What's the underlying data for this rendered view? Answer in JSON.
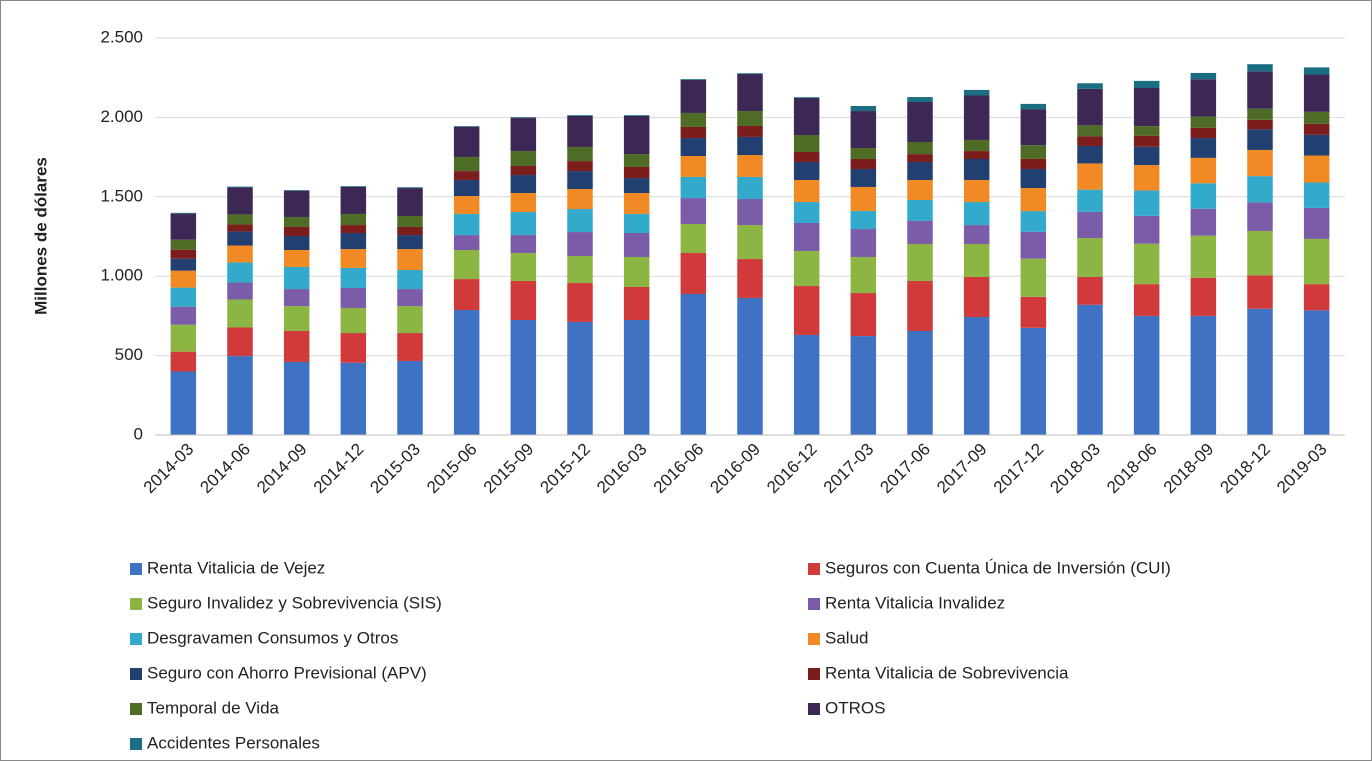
{
  "chart_data": {
    "type": "stacked_bar",
    "y_label": "Millones de dólares",
    "categories": [
      "2014-03",
      "2014-06",
      "2014-09",
      "2014-12",
      "2015-03",
      "2015-06",
      "2015-09",
      "2015-12",
      "2016-03",
      "2016-06",
      "2016-09",
      "2016-12",
      "2017-03",
      "2017-06",
      "2017-09",
      "2017-12",
      "2018-03",
      "2018-06",
      "2018-09",
      "2018-12",
      "2019-03"
    ],
    "series": [
      {
        "name": "Renta Vitalicia de Vejez",
        "color": "#3f72c2",
        "values": [
          400,
          497,
          460,
          455,
          466,
          787,
          724,
          712,
          724,
          888,
          863,
          630,
          623,
          655,
          743,
          675,
          820,
          750,
          750,
          795,
          785
        ]
      },
      {
        "name": "Seguros con Cuenta Única de Inversión (CUI)",
        "color": "#d03a3a",
        "values": [
          125,
          180,
          195,
          187,
          176,
          195,
          246,
          245,
          208,
          258,
          245,
          308,
          271,
          315,
          252,
          195,
          175,
          200,
          240,
          210,
          165
        ]
      },
      {
        "name": "Seguro Invalidez y Sobrevivencia (SIS)",
        "color": "#8db543",
        "values": [
          170,
          176,
          157,
          158,
          170,
          183,
          176,
          170,
          189,
          183,
          214,
          221,
          227,
          233,
          208,
          240,
          245,
          255,
          265,
          280,
          285
        ]
      },
      {
        "name": "Renta Vitalicia Invalidez",
        "color": "#7b5ca8",
        "values": [
          113,
          107,
          107,
          126,
          107,
          94,
          113,
          151,
          151,
          163,
          164,
          176,
          176,
          145,
          119,
          170,
          165,
          175,
          170,
          180,
          195
        ]
      },
      {
        "name": "Desgravamen Consumos y Otros",
        "color": "#33a9cc",
        "values": [
          120,
          126,
          139,
          126,
          120,
          133,
          145,
          145,
          120,
          133,
          139,
          132,
          114,
          132,
          145,
          130,
          140,
          160,
          160,
          165,
          160
        ]
      },
      {
        "name": "Salud",
        "color": "#f18a25",
        "values": [
          107,
          107,
          107,
          119,
          132,
          113,
          120,
          126,
          132,
          132,
          138,
          139,
          151,
          126,
          139,
          145,
          165,
          160,
          160,
          165,
          170
        ]
      },
      {
        "name": "Seguro con Ahorro Previsional (APV)",
        "color": "#213f70",
        "values": [
          75,
          89,
          88,
          101,
          88,
          101,
          113,
          113,
          94,
          113,
          114,
          113,
          113,
          113,
          132,
          120,
          110,
          115,
          125,
          130,
          130
        ]
      },
      {
        "name": "Renta Vitalicia de Sobrevivencia",
        "color": "#7c1d1d",
        "values": [
          57,
          44,
          57,
          50,
          51,
          56,
          57,
          63,
          70,
          70,
          69,
          63,
          63,
          50,
          50,
          65,
          60,
          70,
          65,
          60,
          70
        ]
      },
      {
        "name": "Temporal de Vida",
        "color": "#4f6c26",
        "values": [
          63,
          63,
          63,
          70,
          69,
          89,
          94,
          89,
          81,
          88,
          94,
          107,
          69,
          76,
          70,
          85,
          70,
          60,
          70,
          70,
          75
        ]
      },
      {
        "name": "OTROS",
        "color": "#3c2755",
        "values": [
          164,
          170,
          164,
          170,
          176,
          189,
          208,
          195,
          240,
          208,
          233,
          233,
          233,
          252,
          280,
          225,
          230,
          240,
          235,
          235,
          235
        ]
      },
      {
        "name": "Accidentes Personales",
        "color": "#1b6d81",
        "values": [
          5,
          5,
          5,
          5,
          5,
          5,
          5,
          5,
          5,
          5,
          5,
          5,
          32,
          31,
          35,
          35,
          35,
          45,
          40,
          45,
          45
        ]
      }
    ],
    "ylim": [
      0,
      2500
    ],
    "yticks": [
      0,
      500,
      {
        "value": 1000,
        "label": "1.000"
      },
      {
        "value": 1500,
        "label": "1.500"
      },
      {
        "value": 2000,
        "label": "2.000"
      },
      {
        "value": 2500,
        "label": "2.500"
      }
    ],
    "grid": true
  }
}
